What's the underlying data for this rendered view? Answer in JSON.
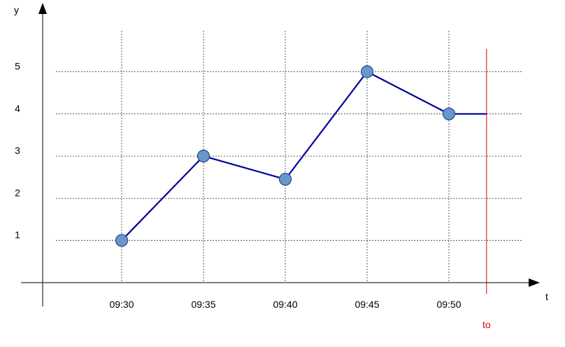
{
  "chart_data": {
    "type": "line",
    "xlabel": "t",
    "ylabel": "y",
    "x_tick_labels": [
      "09:30",
      "09:35",
      "09:40",
      "09:45",
      "09:50"
    ],
    "y_tick_labels": [
      "1",
      "2",
      "3",
      "4",
      "5"
    ],
    "series": [
      {
        "x": [
          "09:30",
          "09:35",
          "09:40",
          "09:45",
          "09:50"
        ],
        "values": [
          1,
          3,
          2.45,
          5,
          4
        ],
        "extension": {
          "x": "09:52.3",
          "value": 4
        }
      }
    ],
    "marker": {
      "label": "to",
      "x": "09:52.3"
    },
    "ylim": [
      0,
      5
    ],
    "grid": true,
    "colors": {
      "line": "#000099",
      "point_fill": "#6a96d0",
      "point_stroke": "#274a7a",
      "marker": "#dd0000",
      "grid": "#333333"
    }
  }
}
